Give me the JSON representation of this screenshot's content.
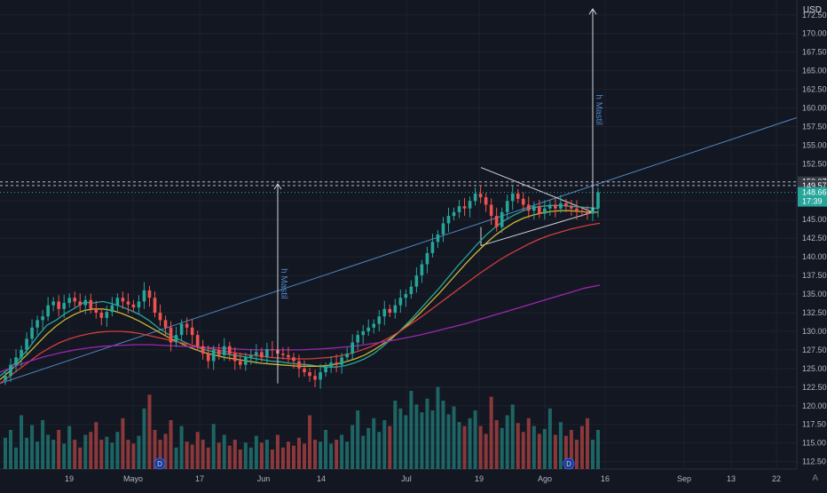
{
  "chart_data": {
    "type": "candlestick",
    "currency": "USD",
    "y_axis": {
      "range": [
        111.5,
        174.5
      ],
      "ticks": [
        112.5,
        115.0,
        117.5,
        120.0,
        122.5,
        125.0,
        127.5,
        130.0,
        132.5,
        135.0,
        137.5,
        140.0,
        142.5,
        145.0,
        147.5,
        150.0,
        152.5,
        155.0,
        157.5,
        160.0,
        162.5,
        165.0,
        167.5,
        170.0,
        172.5
      ],
      "tick_labels": [
        "112.50",
        "115.00",
        "117.50",
        "120.00",
        "122.50",
        "125.00",
        "127.50",
        "130.00",
        "132.50",
        "135.00",
        "137.50",
        "140.00",
        "142.50",
        "145.00",
        "147.50",
        "150.00",
        "152.50",
        "155.00",
        "157.50",
        "160.00",
        "162.50",
        "165.00",
        "167.50",
        "170.00",
        "172.50"
      ]
    },
    "x_axis": {
      "labels": [
        "19",
        "Mayo",
        "17",
        "Jun",
        "14",
        "Jul",
        "19",
        "Ago",
        "16",
        "Sep",
        "13",
        "22"
      ]
    },
    "price_tags": [
      {
        "label": "150.07",
        "value": 150.07,
        "color": "#363a45"
      },
      {
        "label": "149.57",
        "value": 149.57,
        "color": "#363a45"
      },
      {
        "label": "148.66",
        "value": 148.66,
        "color": "#26a69a",
        "countdown": "17:39"
      }
    ],
    "dashed_levels": [
      150.07,
      149.57
    ],
    "ohlc_closes": [
      124.0,
      125.5,
      126.5,
      127.5,
      129.0,
      130.5,
      131.5,
      132.0,
      133.5,
      134.0,
      133.0,
      133.8,
      134.5,
      134.0,
      133.5,
      134.2,
      133.0,
      132.5,
      131.8,
      132.6,
      133.5,
      134.5,
      134.0,
      133.6,
      133.2,
      134.0,
      135.5,
      134.5,
      132.5,
      131.5,
      130.5,
      128.5,
      129.5,
      131.0,
      130.5,
      129.5,
      128.0,
      127.0,
      126.0,
      127.5,
      126.8,
      128.0,
      127.0,
      126.0,
      125.5,
      126.5,
      126.8,
      127.2,
      126.5,
      127.6,
      127.5,
      127.0,
      126.8,
      126.5,
      126.0,
      125.0,
      124.5,
      124.0,
      123.5,
      124.5,
      125.2,
      125.8,
      125.5,
      126.5,
      127.0,
      128.5,
      129.5,
      130.0,
      130.5,
      131.0,
      132.0,
      133.0,
      132.5,
      133.5,
      134.5,
      135.0,
      136.0,
      137.5,
      139.0,
      140.5,
      142.0,
      143.0,
      144.5,
      145.5,
      146.0,
      146.8,
      146.5,
      147.5,
      148.5,
      148.0,
      147.0,
      145.5,
      144.0,
      146.0,
      147.5,
      148.5,
      147.8,
      147.0,
      146.2,
      146.8,
      145.8,
      146.5,
      147.0,
      146.5,
      147.2,
      146.8,
      146.5,
      146.2,
      146.0,
      145.8,
      146.5,
      148.66
    ],
    "volume": [
      0.32,
      0.4,
      0.22,
      0.55,
      0.32,
      0.45,
      0.28,
      0.5,
      0.35,
      0.3,
      0.4,
      0.26,
      0.44,
      0.3,
      0.22,
      0.35,
      0.38,
      0.48,
      0.3,
      0.33,
      0.27,
      0.38,
      0.52,
      0.3,
      0.26,
      0.34,
      0.62,
      0.76,
      0.4,
      0.3,
      0.36,
      0.5,
      0.22,
      0.44,
      0.28,
      0.25,
      0.38,
      0.3,
      0.22,
      0.46,
      0.27,
      0.35,
      0.24,
      0.3,
      0.2,
      0.27,
      0.22,
      0.34,
      0.27,
      0.3,
      0.2,
      0.35,
      0.22,
      0.28,
      0.24,
      0.32,
      0.26,
      0.55,
      0.3,
      0.28,
      0.4,
      0.26,
      0.3,
      0.35,
      0.28,
      0.45,
      0.6,
      0.34,
      0.42,
      0.52,
      0.38,
      0.5,
      0.44,
      0.7,
      0.62,
      0.55,
      0.8,
      0.66,
      0.58,
      0.72,
      0.6,
      0.84,
      0.7,
      0.56,
      0.64,
      0.48,
      0.44,
      0.52,
      0.6,
      0.44,
      0.36,
      0.74,
      0.5,
      0.42,
      0.55,
      0.66,
      0.47,
      0.38,
      0.52,
      0.44,
      0.36,
      0.41,
      0.62,
      0.35,
      0.48,
      0.34,
      0.4,
      0.3,
      0.44,
      0.52,
      0.3,
      0.4
    ],
    "moving_averages": [
      {
        "color": "#26a69a",
        "values": [
          124.0,
          125.0,
          126.2,
          127.6,
          129.3,
          130.8,
          131.5,
          132.4,
          133.1,
          133.9,
          133.8,
          134.0,
          133.7,
          133.3,
          132.8,
          132.2,
          131.4,
          130.4,
          129.6,
          129.0,
          128.4,
          127.9,
          127.5,
          127.2,
          127.0,
          126.8,
          126.6,
          126.4,
          126.2,
          126.0,
          125.9,
          125.7,
          125.6,
          125.5,
          125.3,
          125.2,
          125.2,
          125.4,
          125.8,
          126.3,
          127.0,
          128.0,
          129.1,
          130.3,
          131.6,
          133.0,
          134.4,
          135.8,
          137.3,
          138.8,
          140.2,
          141.6,
          142.9,
          144.0,
          144.9,
          145.6,
          146.2,
          146.6,
          146.8,
          146.9,
          146.9,
          146.8,
          146.7,
          146.6,
          146.5
        ]
      },
      {
        "color": "#c9b735",
        "values": [
          123.5,
          124.6,
          125.8,
          127.0,
          128.3,
          129.6,
          130.7,
          131.6,
          132.3,
          132.8,
          133.0,
          133.0,
          132.8,
          132.4,
          131.9,
          131.3,
          130.6,
          129.9,
          129.2,
          128.6,
          128.0,
          127.5,
          127.1,
          126.8,
          126.5,
          126.3,
          126.1,
          125.9,
          125.7,
          125.6,
          125.5,
          125.4,
          125.3,
          125.3,
          125.3,
          125.4,
          125.6,
          125.9,
          126.3,
          126.8,
          127.5,
          128.3,
          129.2,
          130.2,
          131.3,
          132.5,
          133.8,
          135.1,
          136.5,
          137.9,
          139.3,
          140.6,
          141.8,
          142.9,
          143.8,
          144.6,
          145.2,
          145.6,
          145.9,
          146.1,
          146.2,
          146.2,
          146.1,
          146.0,
          146.0
        ]
      },
      {
        "color": "#d23e3e",
        "values": [
          123.0,
          124.0,
          125.0,
          126.0,
          127.0,
          127.8,
          128.5,
          129.0,
          129.4,
          129.7,
          129.9,
          130.0,
          130.0,
          129.9,
          129.7,
          129.4,
          129.1,
          128.8,
          128.5,
          128.2,
          127.9,
          127.7,
          127.4,
          127.2,
          127.0,
          126.8,
          126.7,
          126.5,
          126.4,
          126.3,
          126.3,
          126.3,
          126.4,
          126.5,
          126.7,
          127.0,
          127.4,
          127.9,
          128.5,
          129.2,
          130.0,
          130.9,
          131.8,
          132.8,
          133.8,
          134.8,
          135.8,
          136.8,
          137.8,
          138.7,
          139.6,
          140.4,
          141.1,
          141.8,
          142.4,
          142.9,
          143.3,
          143.7,
          144.0,
          144.3,
          144.5
        ]
      },
      {
        "color": "#9c27b0",
        "values": [
          124.5,
          125.3,
          126.0,
          126.6,
          127.1,
          127.5,
          127.8,
          128.0,
          128.1,
          128.2,
          128.2,
          128.1,
          128.0,
          127.9,
          127.8,
          127.7,
          127.6,
          127.5,
          127.5,
          127.5,
          127.5,
          127.6,
          127.7,
          127.9,
          128.1,
          128.4,
          128.7,
          129.1,
          129.5,
          130.0,
          130.5,
          131.0,
          131.6,
          132.2,
          132.8,
          133.4,
          134.0,
          134.6,
          135.2,
          135.8,
          136.2
        ]
      }
    ],
    "annotations": [
      {
        "type": "measure",
        "label": "h Mastil",
        "from": 123.0,
        "to": 149.8
      },
      {
        "type": "measure",
        "label": "h Mastil",
        "from": 146.2,
        "to": 173.3
      }
    ],
    "event_markers": [
      {
        "label": "D"
      },
      {
        "label": "D"
      }
    ]
  }
}
